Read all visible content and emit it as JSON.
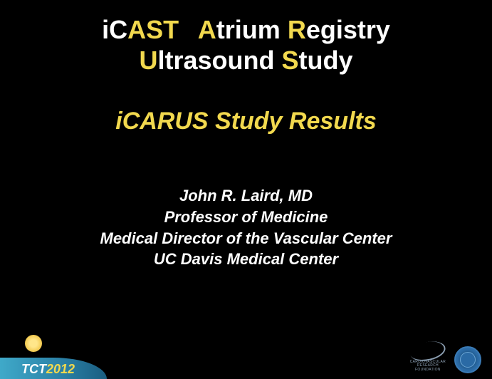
{
  "slide": {
    "background_color": "#000000",
    "text_white": "#ffffff",
    "text_yellow": "#f2d94e",
    "title": {
      "line1_segments": [
        {
          "text": "iC",
          "color": "w"
        },
        {
          "text": "AST",
          "color": "y"
        },
        {
          "text": "™ ",
          "color": "w",
          "sup": true
        },
        {
          "text": "A",
          "color": "y"
        },
        {
          "text": "trium ",
          "color": "w"
        },
        {
          "text": "R",
          "color": "y"
        },
        {
          "text": "egistry",
          "color": "w"
        }
      ],
      "line2_segments": [
        {
          "text": "U",
          "color": "y"
        },
        {
          "text": "ltrasound ",
          "color": "w"
        },
        {
          "text": "S",
          "color": "y"
        },
        {
          "text": "tudy",
          "color": "w"
        }
      ],
      "fontsize": 36,
      "fontweight": "bold"
    },
    "subtitle": {
      "text": "iCARUS Study Results",
      "fontsize": 34,
      "fontweight": "bold",
      "fontstyle": "italic",
      "color": "#f2d94e"
    },
    "author": {
      "lines": [
        "John R. Laird, MD",
        "Professor of Medicine",
        "Medical Director of the Vascular Center",
        "UC Davis Medical Center"
      ],
      "fontsize": 22,
      "fontweight": "bold",
      "fontstyle": "italic",
      "color": "#ffffff"
    },
    "footer": {
      "conference": {
        "prefix": "TCT",
        "year": "2012",
        "wave_colors": [
          "#3fa9c9",
          "#2a7fa5",
          "#1a5d80"
        ],
        "sun_color": "#f2c94e"
      },
      "crf": {
        "lines": [
          "CARDIOVASCULAR",
          "RESEARCH",
          "FOUNDATION"
        ],
        "swoosh_color": "#8a9db0"
      },
      "seal": {
        "border_color": "#3a7ab5",
        "inner_color": "#2a6aa5"
      }
    }
  }
}
